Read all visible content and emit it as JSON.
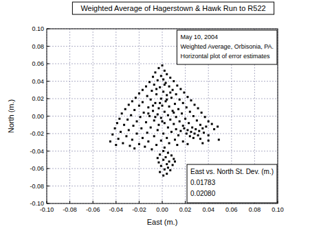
{
  "chart_data": {
    "type": "scatter",
    "title": "Weighted Average of Hagerstown & Hawk Run to R522",
    "x_label": "East (m.)",
    "y_label": "North (m.)",
    "annotations": [
      "May 10, 2004",
      "Weighted Average, Orbisonia, PA.",
      "Horizontal plot of error estimates"
    ],
    "std_dev": {
      "title": "East vs. North St. Dev. (m.)",
      "east": {
        "value": 0.01783,
        "label": "0.01783"
      },
      "north": {
        "value": 0.0208,
        "label": "0.02080"
      }
    },
    "color": "#000000",
    "marker": "square",
    "grid": true,
    "xlim": [
      -0.1,
      0.1
    ],
    "ylim": [
      -0.1,
      0.1
    ],
    "xticks": [
      {
        "value": -0.1,
        "label": "-0.10"
      },
      -0.08,
      -0.06,
      -0.04,
      -0.02,
      {
        "value": 0,
        "label": "0.00"
      },
      0.02,
      0.04,
      0.06,
      0.08,
      {
        "value": 0.1,
        "label": "0.10"
      }
    ],
    "yticks": [
      {
        "value": -0.1,
        "label": "-0.10"
      },
      -0.08,
      -0.06,
      -0.04,
      -0.02,
      {
        "value": 0,
        "label": "0.00"
      },
      0.02,
      0.04,
      0.06,
      0.08,
      {
        "value": 0.1,
        "label": "0.10"
      }
    ],
    "x": [
      0.0,
      -0.003,
      0.002,
      -0.006,
      0.004,
      -0.001,
      -0.008,
      0.007,
      0.001,
      -0.004,
      0.01,
      -0.011,
      0.003,
      -0.007,
      0.013,
      -0.014,
      0.006,
      -0.002,
      0.016,
      -0.017,
      0.009,
      -0.009,
      0.001,
      0.019,
      -0.02,
      0.012,
      -0.005,
      0.004,
      -0.013,
      0.022,
      -0.023,
      0.008,
      -0.001,
      0.015,
      -0.01,
      0.025,
      -0.026,
      0.003,
      -0.017,
      0.018,
      -0.006,
      0.011,
      -0.029,
      0.028,
      0.0,
      -0.02,
      0.006,
      -0.012,
      0.021,
      -0.003,
      0.031,
      -0.032,
      0.014,
      -0.024,
      0.009,
      -0.008,
      0.002,
      0.024,
      -0.016,
      0.034,
      -0.035,
      0.017,
      -0.004,
      0.005,
      -0.027,
      0.027,
      -0.011,
      0.012,
      -0.019,
      0.037,
      -0.001,
      -0.037,
      0.02,
      0.007,
      -0.03,
      -0.007,
      0.03,
      0.015,
      -0.022,
      0.04,
      -0.014,
      0.002,
      -0.039,
      0.023,
      0.01,
      -0.033,
      -0.003,
      0.033,
      -0.025,
      0.018,
      0.026,
      0.029,
      0.022,
      0.032,
      0.025,
      0.028,
      0.021,
      0.035,
      0.031,
      0.024,
      0.038,
      0.019,
      0.027,
      0.043,
      0.036,
      0.016,
      0.045,
      0.04,
      0.033,
      0.048,
      -0.01,
      0.005,
      -0.041,
      -0.018,
      0.012,
      -0.029,
      -0.004,
      -0.036,
      0.008,
      -0.013,
      -0.022,
      0.001,
      -0.043,
      0.014,
      -0.031,
      -0.007,
      -0.017,
      0.004,
      -0.038,
      0.011,
      -0.026,
      -0.001,
      -0.045,
      -0.012,
      0.018,
      -0.034,
      0.006,
      -0.02,
      0.04,
      -0.04,
      -0.005,
      0.013,
      -0.028,
      0.049,
      -0.015,
      0.002,
      0.022,
      -0.024,
      -0.009,
      0.035,
      0.001,
      0.005,
      -0.002,
      0.008,
      0.003,
      -0.004,
      0.01,
      0.001,
      0.006,
      -0.003,
      0.004,
      0.009,
      -0.001,
      0.005,
      0.002,
      0.007,
      -0.002,
      0.004,
      0.001,
      0.011,
      -0.002,
      0.004,
      -0.008,
      0.007,
      -0.005,
      0.002,
      0.01,
      -0.012,
      0.0,
      -0.006
    ],
    "values": [
      0.058,
      0.055,
      0.052,
      0.05,
      0.048,
      0.046,
      0.045,
      0.044,
      0.042,
      0.041,
      0.04,
      0.039,
      0.038,
      0.036,
      0.035,
      0.034,
      0.034,
      0.033,
      0.031,
      0.03,
      0.03,
      0.029,
      0.028,
      0.027,
      0.026,
      0.025,
      0.025,
      0.024,
      0.023,
      0.022,
      0.021,
      0.021,
      0.02,
      0.019,
      0.019,
      0.018,
      0.017,
      0.017,
      0.016,
      0.015,
      0.015,
      0.014,
      0.013,
      0.013,
      0.012,
      0.012,
      0.011,
      0.01,
      0.01,
      0.009,
      0.009,
      0.008,
      0.008,
      0.007,
      0.006,
      0.006,
      0.005,
      0.005,
      0.004,
      0.004,
      0.003,
      0.003,
      0.002,
      0.001,
      0.001,
      0.0,
      0.0,
      -0.001,
      -0.001,
      -0.001,
      -0.002,
      -0.003,
      -0.003,
      -0.004,
      -0.004,
      -0.005,
      -0.005,
      -0.006,
      -0.006,
      -0.006,
      -0.007,
      -0.008,
      -0.008,
      -0.008,
      -0.009,
      -0.01,
      -0.01,
      -0.01,
      -0.011,
      -0.011,
      -0.013,
      -0.015,
      -0.016,
      -0.017,
      -0.018,
      -0.02,
      -0.02,
      -0.014,
      -0.022,
      -0.023,
      -0.012,
      -0.014,
      -0.025,
      -0.009,
      -0.019,
      -0.017,
      -0.015,
      -0.022,
      -0.026,
      -0.012,
      -0.013,
      -0.013,
      -0.014,
      -0.014,
      -0.015,
      -0.016,
      -0.016,
      -0.018,
      -0.018,
      -0.019,
      -0.02,
      -0.02,
      -0.021,
      -0.022,
      -0.023,
      -0.023,
      -0.025,
      -0.025,
      -0.026,
      -0.027,
      -0.027,
      -0.028,
      -0.029,
      -0.029,
      -0.029,
      -0.031,
      -0.031,
      -0.032,
      -0.028,
      -0.033,
      -0.033,
      -0.033,
      -0.034,
      -0.027,
      -0.035,
      -0.036,
      -0.032,
      -0.037,
      -0.038,
      -0.031,
      -0.04,
      -0.042,
      -0.044,
      -0.045,
      -0.047,
      -0.048,
      -0.049,
      -0.05,
      -0.052,
      -0.053,
      -0.055,
      -0.056,
      -0.057,
      -0.059,
      -0.061,
      -0.062,
      -0.064,
      -0.066,
      -0.068,
      -0.052,
      0.015,
      0.019,
      0.012,
      0.027,
      0.031,
      0.036,
      0.004,
      0.003,
      -0.006,
      -0.001
    ]
  }
}
